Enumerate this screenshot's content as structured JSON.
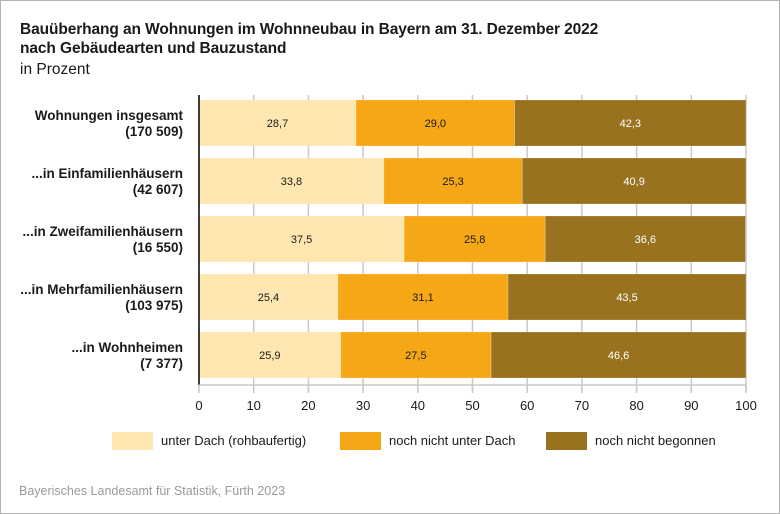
{
  "chart_data": {
    "type": "bar",
    "orientation": "horizontal",
    "stacked": true,
    "title": "Bauüberhang an Wohnungen im Wohnneubau in Bayern am 31. Dezember 2022 nach Gebäudearten und Bauzustand",
    "title_lines": [
      "Bauüberhang an Wohnungen im Wohnneubau in Bayern am 31. Dezember 2022",
      "nach Gebäudearten und Bauzustand"
    ],
    "subtitle": "in Prozent",
    "xlabel": "",
    "ylabel": "",
    "xlim": [
      0,
      100
    ],
    "x_ticks": [
      0,
      10,
      20,
      30,
      40,
      50,
      60,
      70,
      80,
      90,
      100
    ],
    "grid": true,
    "legend_position": "bottom",
    "decimal_separator": ",",
    "categories": [
      {
        "name": "Wohnungen insgesamt",
        "count": "(170 509)"
      },
      {
        "name": "...in Einfamilienhäusern",
        "count": "(42 607)"
      },
      {
        "name": "...in Zweifamilienhäusern",
        "count": "(16 550)"
      },
      {
        "name": "...in Mehrfamilienhäusern",
        "count": "(103 975)"
      },
      {
        "name": "...in Wohnheimen",
        "count": "(7 377)"
      }
    ],
    "series": [
      {
        "name": "unter Dach (rohbaufertig)",
        "color": "#fde6b0",
        "label_color": "#1a1a1a",
        "values": [
          28.7,
          33.8,
          37.5,
          25.4,
          25.9
        ]
      },
      {
        "name": "noch nicht unter Dach",
        "color": "#f6a715",
        "label_color": "#1a1a1a",
        "values": [
          29.0,
          25.3,
          25.8,
          31.1,
          27.5
        ]
      },
      {
        "name": "noch nicht begonnen",
        "color": "#98721f",
        "label_color": "#ffffff",
        "values": [
          42.3,
          40.9,
          36.6,
          43.5,
          46.6
        ]
      }
    ]
  },
  "source": "Bayerisches Landesamt für Statistik, Fürth 2023",
  "colors": {
    "grid": "#c8c8c8",
    "axis": "#000000",
    "frame": "#b4b4b4"
  }
}
